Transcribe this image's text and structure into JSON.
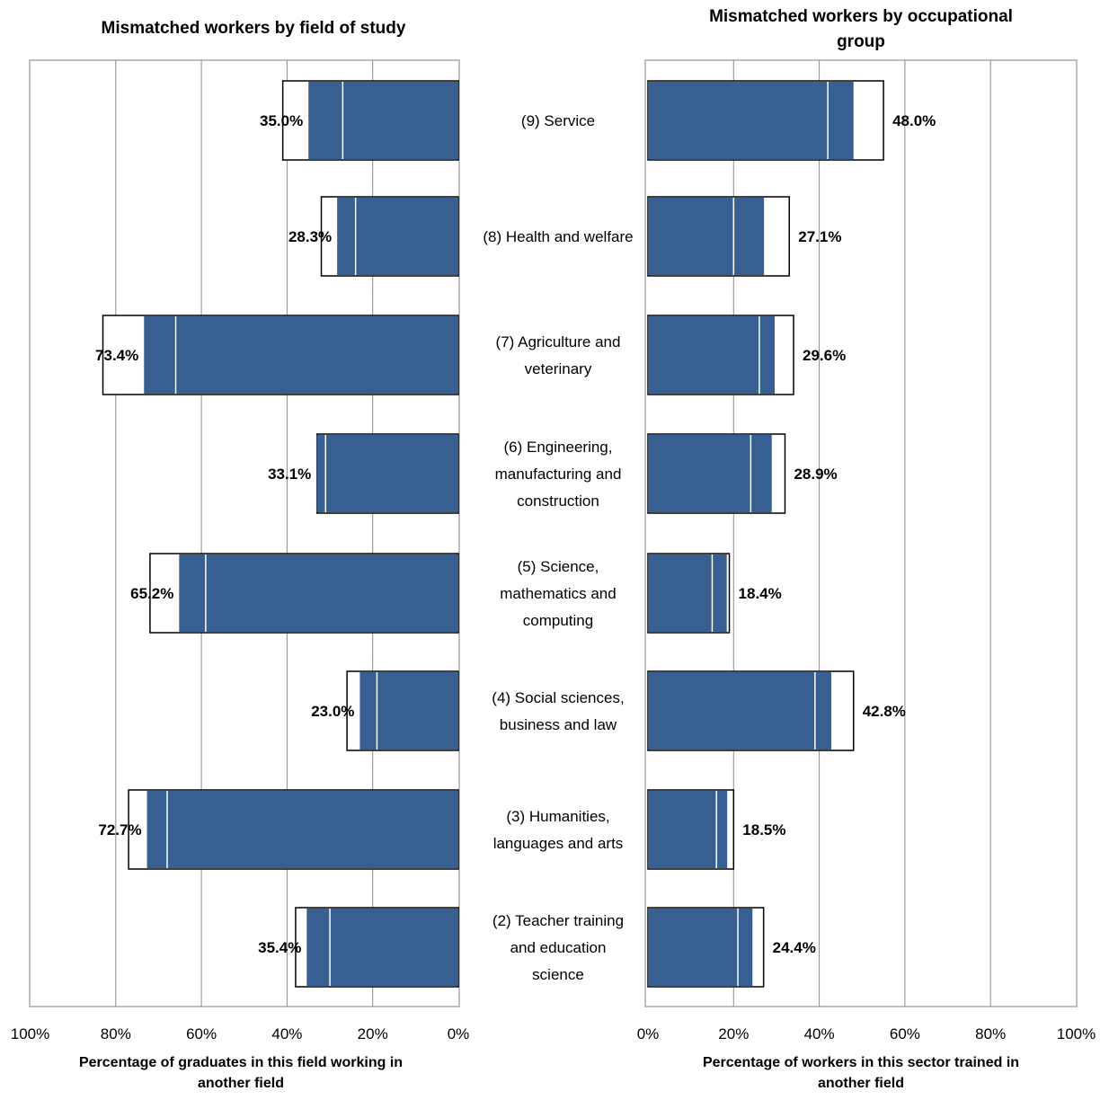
{
  "chart_data": [
    {
      "type": "bar",
      "title": "Mismatched workers by field of study",
      "xlabel": "Percentage of graduates in this field working in another field",
      "ylabel": "",
      "xlim": [
        0,
        100
      ],
      "x_direction": "reversed",
      "grid": true,
      "ticks": [
        "0%",
        "20%",
        "40%",
        "60%",
        "80%",
        "100%"
      ],
      "categories": [
        "(9) Service",
        "(8) Health and welfare",
        "(7) Agriculture and veterinary",
        "(6) Engineering, manufacturing and construction",
        "(5) Science, mathematics and computing",
        "(4) Social sciences, business and law",
        "(3) Humanities, languages and arts",
        "(2) Teacher training and education science"
      ],
      "values": [
        35.0,
        28.3,
        73.4,
        33.1,
        65.2,
        23.0,
        72.7,
        35.4
      ],
      "labels": [
        "35.0%",
        "28.3%",
        "73.4%",
        "33.1%",
        "65.2%",
        "23.0%",
        "72.7%",
        "35.4%"
      ],
      "outline_values": [
        41,
        32,
        83,
        33,
        72,
        26,
        77,
        38
      ],
      "marker_values": [
        27,
        24,
        66,
        31,
        59,
        19,
        68,
        30
      ]
    },
    {
      "type": "bar",
      "title": "Mismatched workers by occupational group",
      "xlabel": "Percentage of workers in this sector trained in another field",
      "ylabel": "",
      "xlim": [
        0,
        100
      ],
      "grid": true,
      "ticks": [
        "0%",
        "20%",
        "40%",
        "60%",
        "80%",
        "100%"
      ],
      "categories": [
        "(9) Service",
        "(8) Health and welfare",
        "(7) Agriculture and veterinary",
        "(6) Engineering, manufacturing and construction",
        "(5) Science, mathematics and computing",
        "(4) Social sciences, business and law",
        "(3) Humanities, languages and arts",
        "(2) Teacher training and education science"
      ],
      "values": [
        48.0,
        27.1,
        29.6,
        28.9,
        18.4,
        42.8,
        18.5,
        24.4
      ],
      "labels": [
        "48.0%",
        "27.1%",
        "29.6%",
        "28.9%",
        "18.4%",
        "42.8%",
        "18.5%",
        "24.4%"
      ],
      "outline_values": [
        55,
        33,
        34,
        32,
        19,
        48,
        20,
        27
      ],
      "marker_values": [
        42,
        20,
        26,
        24,
        15,
        39,
        16,
        21
      ]
    }
  ],
  "category_display": [
    [
      "(9) Service"
    ],
    [
      "(8) Health and welfare"
    ],
    [
      "(7) Agriculture and",
      "veterinary"
    ],
    [
      "(6) Engineering,",
      "manufacturing and",
      "construction"
    ],
    [
      "(5) Science,",
      "mathematics and",
      "computing"
    ],
    [
      "(4) Social sciences,",
      "business and law"
    ],
    [
      "(3) Humanities,",
      "languages and arts"
    ],
    [
      "(2) Teacher training",
      "and education",
      "science"
    ]
  ],
  "title_display": [
    [
      "Mismatched workers by field of study"
    ],
    [
      "Mismatched workers by occupational",
      "group"
    ]
  ],
  "xlabel_display": [
    [
      "Percentage of graduates in this field working in",
      "another field"
    ],
    [
      "Percentage of workers in this sector trained in",
      "another field"
    ]
  ],
  "colors": {
    "bar_fill": "#375F91",
    "bar_outline": "#000000",
    "gridline": "#8c8c8c",
    "plot_border": "#bfbfbf",
    "marker_line": "#ffffff",
    "text": "#000000"
  }
}
